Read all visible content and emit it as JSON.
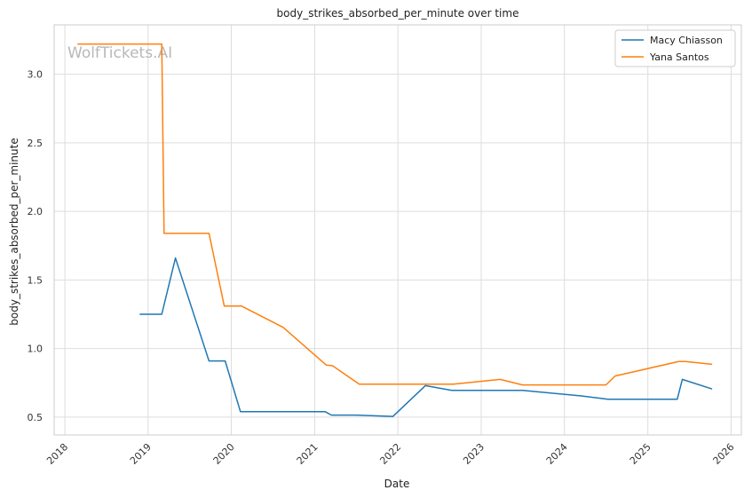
{
  "chart_data": {
    "type": "line",
    "title": "body_strikes_absorbed_per_minute over time",
    "xlabel": "Date",
    "ylabel": "body_strikes_absorbed_per_minute",
    "watermark": "WolfTickets.AI",
    "x_ticks": [
      "2018",
      "2019",
      "2020",
      "2021",
      "2022",
      "2023",
      "2024",
      "2025",
      "2026"
    ],
    "y_ticks": [
      0.5,
      1.0,
      1.5,
      2.0,
      2.5,
      3.0
    ],
    "xlim": [
      "2017-11-15",
      "2026-02-15"
    ],
    "ylim": [
      0.37,
      3.36
    ],
    "grid": true,
    "legend_position": "top-right",
    "series": [
      {
        "name": "Macy Chiasson",
        "color": "#1f77b4",
        "points": [
          [
            "2018-11-25",
            1.25
          ],
          [
            "2019-03-02",
            1.25
          ],
          [
            "2019-05-01",
            1.66
          ],
          [
            "2019-09-25",
            0.91
          ],
          [
            "2019-12-05",
            0.91
          ],
          [
            "2020-02-10",
            0.54
          ],
          [
            "2021-02-15",
            0.54
          ],
          [
            "2021-03-15",
            0.515
          ],
          [
            "2021-07-01",
            0.515
          ],
          [
            "2021-12-10",
            0.505
          ],
          [
            "2022-05-01",
            0.73
          ],
          [
            "2022-08-25",
            0.695
          ],
          [
            "2023-07-01",
            0.695
          ],
          [
            "2024-03-15",
            0.655
          ],
          [
            "2024-07-10",
            0.63
          ],
          [
            "2025-05-10",
            0.63
          ],
          [
            "2025-06-01",
            0.775
          ],
          [
            "2025-10-10",
            0.705
          ]
        ]
      },
      {
        "name": "Yana Santos",
        "color": "#ff7f0e",
        "points": [
          [
            "2018-02-25",
            3.22
          ],
          [
            "2019-03-02",
            3.22
          ],
          [
            "2019-03-12",
            1.84
          ],
          [
            "2019-09-25",
            1.84
          ],
          [
            "2019-12-01",
            1.31
          ],
          [
            "2020-02-15",
            1.31
          ],
          [
            "2020-08-15",
            1.155
          ],
          [
            "2021-02-20",
            0.88
          ],
          [
            "2021-03-20",
            0.875
          ],
          [
            "2021-07-15",
            0.74
          ],
          [
            "2022-09-01",
            0.74
          ],
          [
            "2023-03-25",
            0.775
          ],
          [
            "2023-07-01",
            0.735
          ],
          [
            "2024-07-01",
            0.735
          ],
          [
            "2024-08-10",
            0.8
          ],
          [
            "2025-05-15",
            0.905
          ],
          [
            "2025-06-15",
            0.905
          ],
          [
            "2025-10-10",
            0.885
          ]
        ]
      }
    ]
  }
}
